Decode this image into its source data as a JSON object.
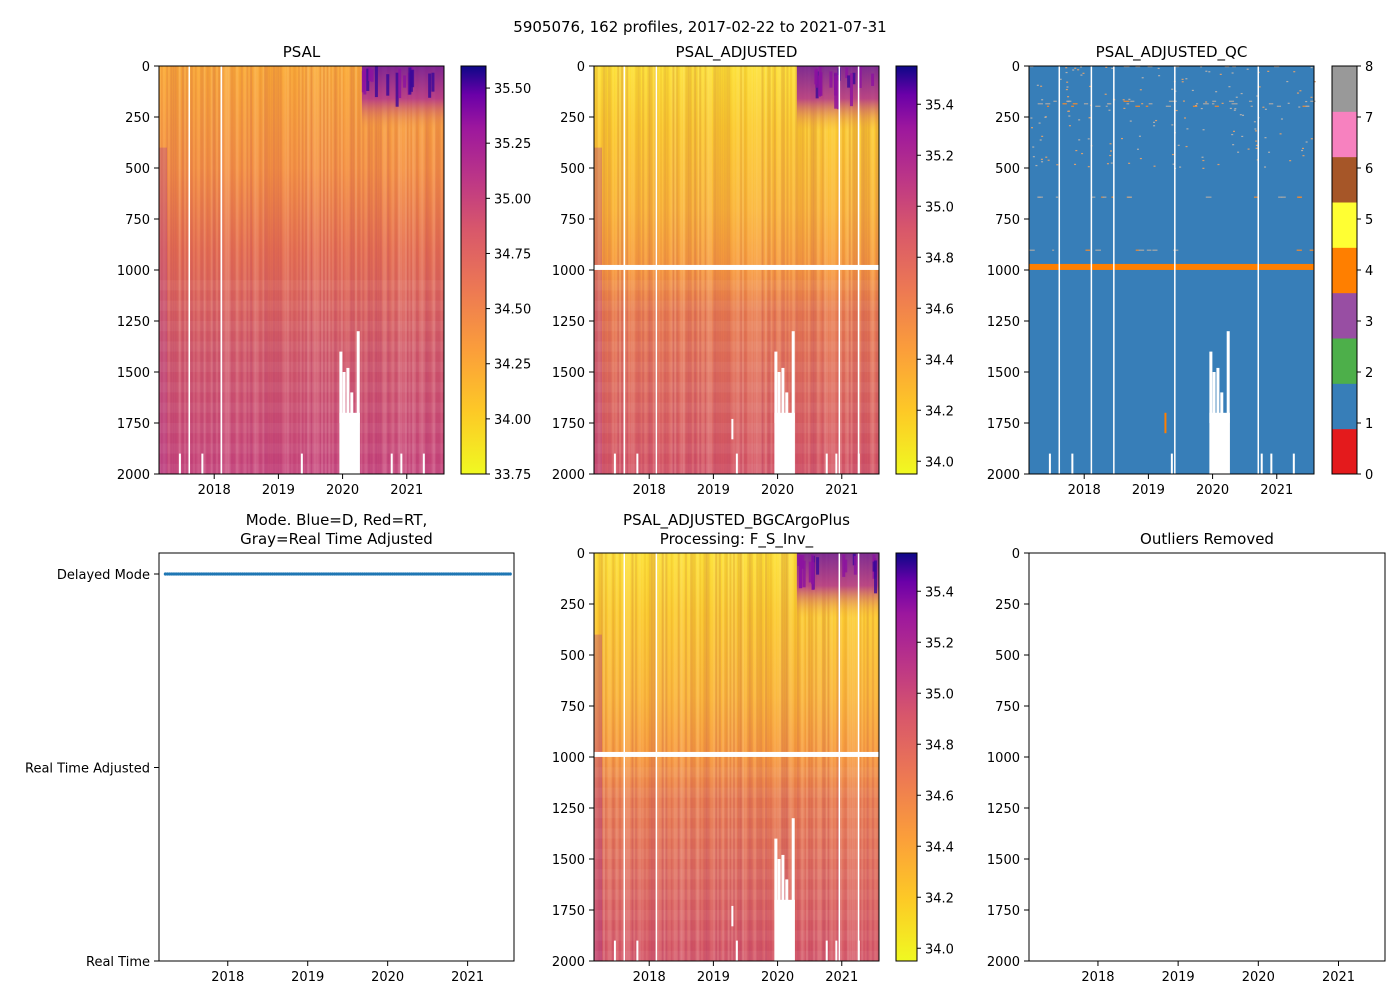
{
  "figure_title": "5905076, 162 profiles, 2017-02-22 to 2021-07-31",
  "chart_data": [
    {
      "id": "psal",
      "type": "heatmap",
      "title": "PSAL",
      "xlabel": "",
      "ylabel": "",
      "xlim": [
        2017.14,
        2021.58
      ],
      "ylim": [
        2000,
        0
      ],
      "x_ticks": [
        "2018",
        "2019",
        "2020",
        "2021"
      ],
      "y_ticks": [
        "0",
        "250",
        "500",
        "750",
        "1000",
        "1250",
        "1500",
        "1750",
        "2000"
      ],
      "colorbar": {
        "colormap": "plasma_r",
        "range": [
          33.75,
          35.6
        ],
        "ticks": [
          "33.75",
          "34.00",
          "34.25",
          "34.50",
          "34.75",
          "35.00",
          "35.25",
          "35.50"
        ]
      },
      "description_values": {
        "surface_salinity": 34.2,
        "deep_salinity": 34.7
      }
    },
    {
      "id": "psal_adjusted",
      "type": "heatmap",
      "title": "PSAL_ADJUSTED",
      "xlim": [
        2017.14,
        2021.58
      ],
      "ylim": [
        2000,
        0
      ],
      "x_ticks": [
        "2018",
        "2019",
        "2020",
        "2021"
      ],
      "y_ticks": [
        "0",
        "250",
        "500",
        "750",
        "1000",
        "1250",
        "1500",
        "1750",
        "2000"
      ],
      "colorbar": {
        "colormap": "plasma_r",
        "range": [
          33.95,
          35.55
        ],
        "ticks": [
          "34.0",
          "34.2",
          "34.4",
          "34.6",
          "34.8",
          "35.0",
          "35.2",
          "35.4"
        ]
      },
      "gap_pressure": 985
    },
    {
      "id": "psal_adjusted_qc",
      "type": "heatmap",
      "title": "PSAL_ADJUSTED_QC",
      "xlim": [
        2017.14,
        2021.58
      ],
      "ylim": [
        2000,
        0
      ],
      "x_ticks": [
        "2018",
        "2019",
        "2020",
        "2021"
      ],
      "y_ticks": [
        "0",
        "250",
        "500",
        "750",
        "1000",
        "1250",
        "1500",
        "1750",
        "2000"
      ],
      "colorbar": {
        "colormap": "Set1",
        "range": [
          0,
          8
        ],
        "ticks": [
          "0",
          "1",
          "2",
          "3",
          "4",
          "5",
          "6",
          "7",
          "8"
        ],
        "colors": [
          "#e41a1c",
          "#377eb8",
          "#4daf4a",
          "#984ea3",
          "#ff7f00",
          "#ffff33",
          "#a65628",
          "#f781bf",
          "#999999"
        ]
      },
      "dominant_flag": 1,
      "flag4_pressure": 985
    },
    {
      "id": "mode",
      "type": "scatter",
      "title_lines": [
        "Mode. Blue=D, Red=RT,",
        "Gray=Real Time Adjusted"
      ],
      "xlim": [
        2017.14,
        2021.58
      ],
      "x_ticks": [
        "2018",
        "2019",
        "2020",
        "2021"
      ],
      "y_categories": [
        "Real Time",
        "Real Time Adjusted",
        "Delayed Mode"
      ],
      "series": [
        {
          "name": "D",
          "color": "#1f77b4",
          "y_value": 2,
          "count": 162
        }
      ]
    },
    {
      "id": "psal_adjusted_bgc",
      "type": "heatmap",
      "title_lines": [
        "PSAL_ADJUSTED_BGCArgoPlus",
        "Processing: F_S_Inv_"
      ],
      "xlim": [
        2017.14,
        2021.58
      ],
      "ylim": [
        2000,
        0
      ],
      "x_ticks": [
        "2018",
        "2019",
        "2020",
        "2021"
      ],
      "y_ticks": [
        "0",
        "250",
        "500",
        "750",
        "1000",
        "1250",
        "1500",
        "1750",
        "2000"
      ],
      "colorbar": {
        "colormap": "plasma_r",
        "range": [
          33.95,
          35.55
        ],
        "ticks": [
          "34.0",
          "34.2",
          "34.4",
          "34.6",
          "34.8",
          "35.0",
          "35.2",
          "35.4"
        ]
      },
      "gap_pressure": 985
    },
    {
      "id": "outliers",
      "type": "scatter",
      "title": "Outliers Removed",
      "xlim": [
        2017.14,
        2021.58
      ],
      "ylim": [
        2000,
        0
      ],
      "x_ticks": [
        "2018",
        "2019",
        "2020",
        "2021"
      ],
      "y_ticks": [
        "0",
        "250",
        "500",
        "750",
        "1000",
        "1250",
        "1500",
        "1750",
        "2000"
      ],
      "series": []
    }
  ]
}
